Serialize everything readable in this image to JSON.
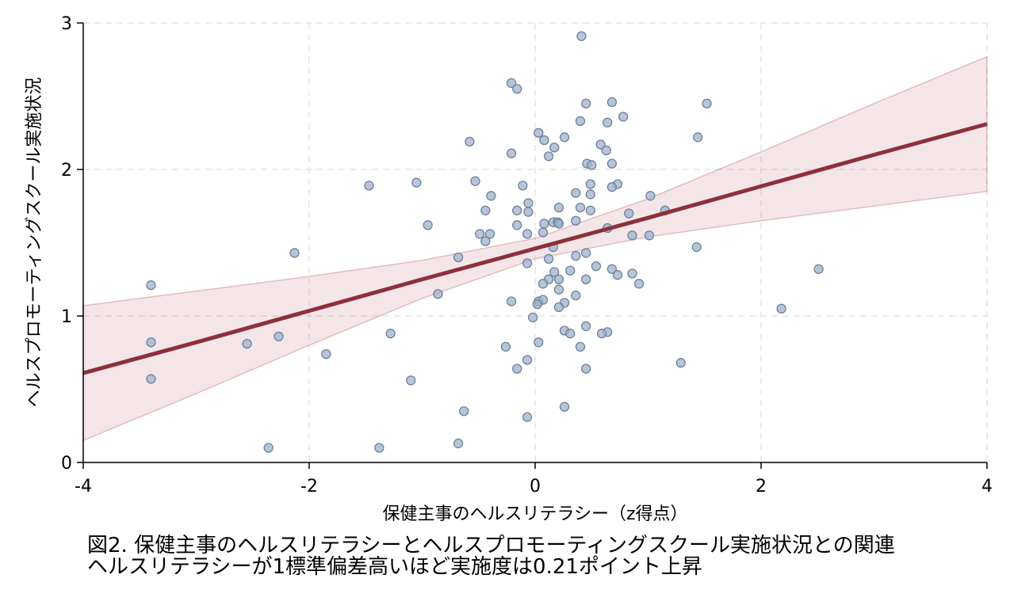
{
  "chart_data": {
    "type": "scatter",
    "xlabel": "保健主事のヘルスリテラシー（z得点）",
    "ylabel": "ヘルスプロモーティングスクール実施状況",
    "caption": [
      "図2. 保健主事のヘルスリテラシーとヘルスプロモーティングスクール実施状況との関連",
      "ヘルスリテラシーが1標準偏差高いほど実施度は0.21ポイント上昇"
    ],
    "xlim": [
      -4,
      4
    ],
    "ylim": [
      0,
      3
    ],
    "xticks": [
      -4,
      -2,
      0,
      2,
      4
    ],
    "yticks": [
      0,
      1,
      2,
      3
    ],
    "grid": true,
    "scatter": {
      "color": "#9fb1c9",
      "edge_color": "#6d819f",
      "x": [
        0.41,
        -0.21,
        -0.16,
        0.45,
        0.68,
        1.52,
        0.4,
        0.64,
        0.78,
        0.03,
        0.26,
        1.44,
        -0.58,
        0.08,
        0.58,
        0.17,
        0.63,
        -0.21,
        0.12,
        0.46,
        0.5,
        0.68,
        -0.53,
        -1.05,
        0.49,
        0.73,
        0.68,
        -1.47,
        -0.11,
        0.36,
        0.49,
        -0.39,
        1.02,
        -0.06,
        0.21,
        0.4,
        -0.44,
        -0.16,
        -0.06,
        0.49,
        1.15,
        0.83,
        0.16,
        0.2,
        0.36,
        -0.16,
        0.08,
        0.21,
        -0.95,
        0.64,
        -0.49,
        -0.4,
        -0.44,
        -0.07,
        0.07,
        0.86,
        1.01,
        0.16,
        1.43,
        -2.13,
        0.45,
        0.36,
        -0.68,
        0.12,
        2.51,
        0.54,
        -0.07,
        0.68,
        0.17,
        0.31,
        0.73,
        0.86,
        0.21,
        0.45,
        0.12,
        0.07,
        0.92,
        -3.4,
        0.21,
        0.36,
        -0.86,
        -0.21,
        0.03,
        0.07,
        0.02,
        0.26,
        0.21,
        2.18,
        -0.02,
        0.45,
        0.26,
        0.31,
        0.64,
        0.59,
        -1.28,
        -2.27,
        -3.4,
        0.03,
        -2.55,
        -0.26,
        0.4,
        -1.85,
        -0.07,
        1.29,
        -0.16,
        0.45,
        -3.4,
        -1.1,
        0.26,
        -0.63,
        -0.07,
        -0.68,
        -2.36,
        -1.38
      ],
      "y": [
        2.91,
        2.59,
        2.55,
        2.45,
        2.46,
        2.45,
        2.33,
        2.32,
        2.36,
        2.25,
        2.22,
        2.22,
        2.19,
        2.2,
        2.17,
        2.15,
        2.13,
        2.11,
        2.09,
        2.04,
        2.03,
        2.04,
        1.92,
        1.91,
        1.9,
        1.9,
        1.88,
        1.89,
        1.89,
        1.84,
        1.83,
        1.82,
        1.82,
        1.77,
        1.74,
        1.74,
        1.72,
        1.72,
        1.71,
        1.72,
        1.72,
        1.7,
        1.64,
        1.64,
        1.65,
        1.62,
        1.63,
        1.63,
        1.62,
        1.6,
        1.56,
        1.56,
        1.51,
        1.56,
        1.57,
        1.55,
        1.55,
        1.47,
        1.47,
        1.43,
        1.43,
        1.41,
        1.4,
        1.39,
        1.32,
        1.34,
        1.36,
        1.32,
        1.3,
        1.31,
        1.28,
        1.29,
        1.25,
        1.25,
        1.25,
        1.22,
        1.22,
        1.21,
        1.18,
        1.14,
        1.15,
        1.1,
        1.1,
        1.11,
        1.08,
        1.09,
        1.06,
        1.05,
        0.99,
        0.93,
        0.9,
        0.88,
        0.89,
        0.88,
        0.88,
        0.86,
        0.82,
        0.82,
        0.81,
        0.79,
        0.79,
        0.74,
        0.7,
        0.68,
        0.64,
        0.64,
        0.57,
        0.56,
        0.38,
        0.35,
        0.31,
        0.13,
        0.1,
        0.1
      ]
    },
    "fit": {
      "color": "#8e2f3a",
      "band_color": "#b65a66",
      "x": [
        -4,
        -3,
        -2,
        -1,
        0,
        1,
        2,
        3,
        4
      ],
      "y": [
        0.61,
        0.82,
        1.035,
        1.25,
        1.46,
        1.67,
        1.885,
        2.1,
        2.31
      ],
      "upper": [
        1.07,
        1.17,
        1.27,
        1.38,
        1.53,
        1.8,
        2.12,
        2.45,
        2.77
      ],
      "lower": [
        0.15,
        0.47,
        0.8,
        1.12,
        1.39,
        1.54,
        1.65,
        1.75,
        1.85
      ]
    }
  }
}
